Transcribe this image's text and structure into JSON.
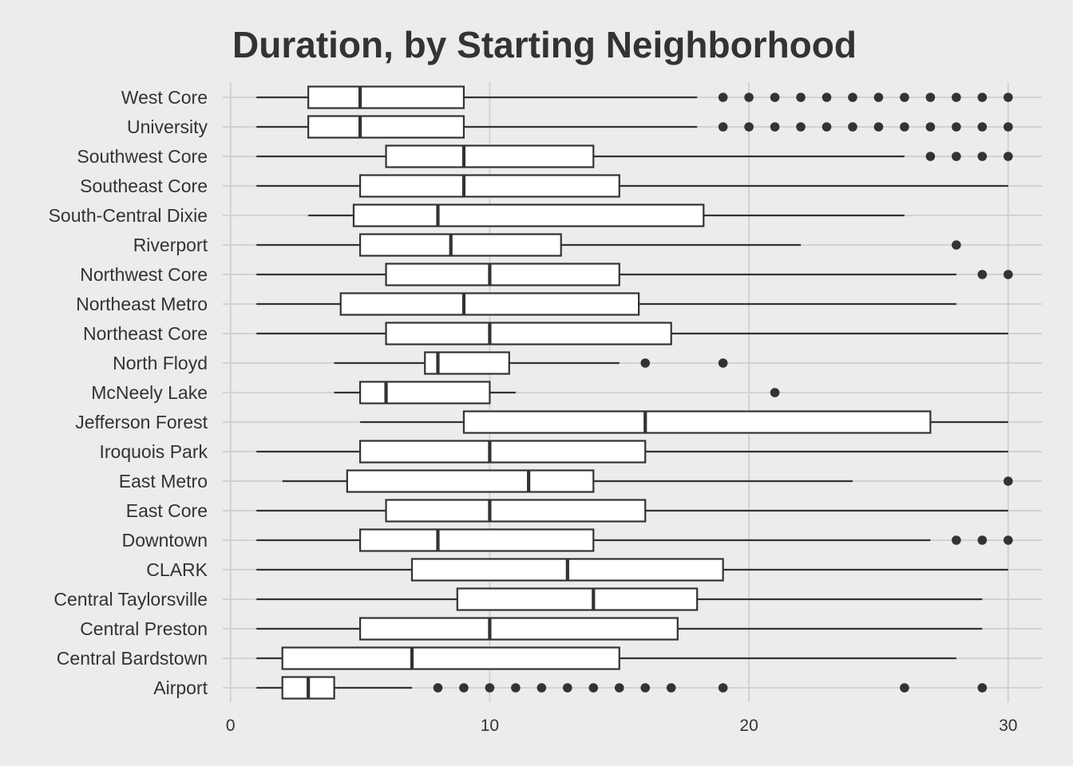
{
  "chart_data": {
    "type": "box",
    "orientation": "horizontal",
    "title": "Duration, by Starting Neighborhood",
    "xlabel": "",
    "ylabel": "",
    "xlim": [
      -0.3,
      31.3
    ],
    "x_ticks": [
      0,
      10,
      20,
      30
    ],
    "grid": true,
    "legend": "none",
    "colors": {
      "background": "#ececec",
      "grid": "#d2d2d2",
      "box_fill": "#ffffff",
      "stroke": "#333333",
      "text": "#333333"
    },
    "categories": [
      "West Core",
      "University",
      "Southwest Core",
      "Southeast Core",
      "South-Central Dixie",
      "Riverport",
      "Northwest Core",
      "Northeast Metro",
      "Northeast Core",
      "North Floyd",
      "McNeely Lake",
      "Jefferson Forest",
      "Iroquois Park",
      "East Metro",
      "East Core",
      "Downtown",
      "CLARK",
      "Central Taylorsville",
      "Central Preston",
      "Central Bardstown",
      "Airport"
    ],
    "boxes": [
      {
        "category": "West Core",
        "min": 1,
        "q1": 3,
        "median": 5,
        "q3": 9,
        "max": 18,
        "outliers": [
          19,
          20,
          21,
          22,
          23,
          24,
          25,
          26,
          27,
          28,
          29,
          30
        ]
      },
      {
        "category": "University",
        "min": 1,
        "q1": 3,
        "median": 5,
        "q3": 9,
        "max": 18,
        "outliers": [
          19,
          20,
          21,
          22,
          23,
          24,
          25,
          26,
          27,
          28,
          29,
          30
        ]
      },
      {
        "category": "Southwest Core",
        "min": 1,
        "q1": 6,
        "median": 9,
        "q3": 14,
        "max": 26,
        "outliers": [
          27,
          28,
          29,
          30
        ]
      },
      {
        "category": "Southeast Core",
        "min": 1,
        "q1": 5,
        "median": 9,
        "q3": 15,
        "max": 30,
        "outliers": []
      },
      {
        "category": "South-Central Dixie",
        "min": 3,
        "q1": 4.75,
        "median": 8,
        "q3": 18.25,
        "max": 26,
        "outliers": []
      },
      {
        "category": "Riverport",
        "min": 1,
        "q1": 5,
        "median": 8.5,
        "q3": 12.75,
        "max": 22,
        "outliers": [
          28
        ]
      },
      {
        "category": "Northwest Core",
        "min": 1,
        "q1": 6,
        "median": 10,
        "q3": 15,
        "max": 28,
        "outliers": [
          29,
          30
        ]
      },
      {
        "category": "Northeast Metro",
        "min": 1,
        "q1": 4.25,
        "median": 9,
        "q3": 15.75,
        "max": 28,
        "outliers": []
      },
      {
        "category": "Northeast Core",
        "min": 1,
        "q1": 6,
        "median": 10,
        "q3": 17,
        "max": 30,
        "outliers": []
      },
      {
        "category": "North Floyd",
        "min": 4,
        "q1": 7.5,
        "median": 8,
        "q3": 10.75,
        "max": 15,
        "outliers": [
          16,
          19
        ]
      },
      {
        "category": "McNeely Lake",
        "min": 4,
        "q1": 5,
        "median": 6,
        "q3": 10,
        "max": 11,
        "outliers": [
          21
        ]
      },
      {
        "category": "Jefferson Forest",
        "min": 5,
        "q1": 9,
        "median": 16,
        "q3": 27,
        "max": 30,
        "outliers": []
      },
      {
        "category": "Iroquois Park",
        "min": 1,
        "q1": 5,
        "median": 10,
        "q3": 16,
        "max": 30,
        "outliers": []
      },
      {
        "category": "East Metro",
        "min": 2,
        "q1": 4.5,
        "median": 11.5,
        "q3": 14,
        "max": 24,
        "outliers": [
          30
        ]
      },
      {
        "category": "East Core",
        "min": 1,
        "q1": 6,
        "median": 10,
        "q3": 16,
        "max": 30,
        "outliers": []
      },
      {
        "category": "Downtown",
        "min": 1,
        "q1": 5,
        "median": 8,
        "q3": 14,
        "max": 27,
        "outliers": [
          28,
          29,
          30
        ]
      },
      {
        "category": "CLARK",
        "min": 1,
        "q1": 7,
        "median": 13,
        "q3": 19,
        "max": 30,
        "outliers": []
      },
      {
        "category": "Central Taylorsville",
        "min": 1,
        "q1": 8.75,
        "median": 14,
        "q3": 18,
        "max": 29,
        "outliers": []
      },
      {
        "category": "Central Preston",
        "min": 1,
        "q1": 5,
        "median": 10,
        "q3": 17.25,
        "max": 29,
        "outliers": []
      },
      {
        "category": "Central Bardstown",
        "min": 1,
        "q1": 2,
        "median": 7,
        "q3": 15,
        "max": 28,
        "outliers": []
      },
      {
        "category": "Airport",
        "min": 1,
        "q1": 2,
        "median": 3,
        "q3": 4,
        "max": 7,
        "outliers": [
          8,
          9,
          10,
          11,
          12,
          13,
          14,
          15,
          16,
          17,
          19,
          26,
          29
        ]
      }
    ]
  }
}
